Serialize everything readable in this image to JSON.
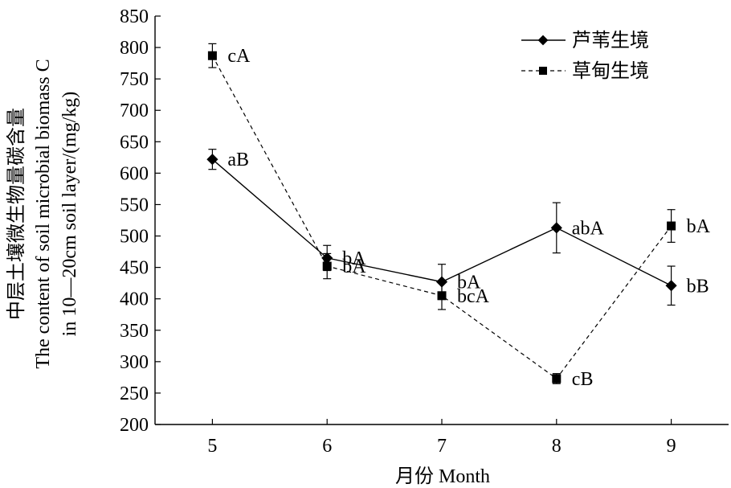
{
  "chart_data": {
    "type": "line",
    "x": [
      5,
      6,
      7,
      8,
      9
    ],
    "x_ticks": [
      "5",
      "6",
      "7",
      "8",
      "9"
    ],
    "xlabel": "月份 Month",
    "ylabel_lines": [
      "中层土壤微生物量碳含量",
      "The content of soil microbial biomass C",
      "in 10—20cm soil layer/(mg/kg)"
    ],
    "ylim": [
      200,
      850
    ],
    "y_ticks": [
      "200",
      "250",
      "300",
      "350",
      "400",
      "450",
      "500",
      "550",
      "600",
      "650",
      "700",
      "750",
      "800",
      "850"
    ],
    "xlim": [
      4.5,
      9.5
    ],
    "grid": false,
    "legend_position": "top-right",
    "series": [
      {
        "name": "芦苇生境",
        "marker": "diamond",
        "line_style": "solid",
        "color": "#000000",
        "values": [
          622,
          465,
          427,
          513,
          421
        ],
        "errors": [
          16,
          20,
          28,
          40,
          31
        ],
        "labels": [
          "aB",
          "bA",
          "bA",
          "abA",
          "bB"
        ]
      },
      {
        "name": "草甸生境",
        "marker": "square",
        "line_style": "dashed",
        "color": "#000000",
        "values": [
          787,
          452,
          405,
          273,
          516
        ],
        "errors": [
          19,
          20,
          22,
          8,
          26
        ],
        "labels": [
          "cA",
          "bA",
          "bcA",
          "cB",
          "bA"
        ]
      }
    ]
  }
}
